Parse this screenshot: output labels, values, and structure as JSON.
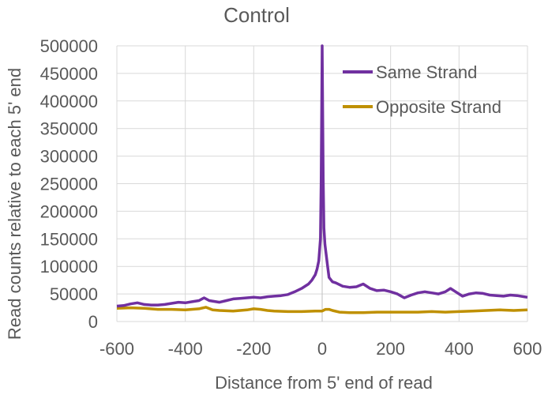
{
  "chart_data": {
    "type": "line",
    "title": "Control",
    "xlabel": "Distance from 5' end of read",
    "ylabel": "Read counts relative to each 5' end",
    "xlim": [
      -600,
      600
    ],
    "ylim": [
      0,
      500000
    ],
    "xticks": [
      -600,
      -400,
      -200,
      0,
      200,
      400,
      600
    ],
    "yticks": [
      0,
      50000,
      100000,
      150000,
      200000,
      250000,
      300000,
      350000,
      400000,
      450000,
      500000
    ],
    "grid": true,
    "legend": "top-right",
    "series": [
      {
        "name": "Same Strand",
        "color": "#7030A0",
        "points": [
          [
            -600,
            28000
          ],
          [
            -580,
            29000
          ],
          [
            -560,
            32000
          ],
          [
            -540,
            34000
          ],
          [
            -520,
            31000
          ],
          [
            -500,
            30000
          ],
          [
            -480,
            30000
          ],
          [
            -460,
            31000
          ],
          [
            -440,
            33000
          ],
          [
            -420,
            35000
          ],
          [
            -400,
            34000
          ],
          [
            -380,
            36000
          ],
          [
            -360,
            38000
          ],
          [
            -345,
            43000
          ],
          [
            -330,
            38000
          ],
          [
            -300,
            35000
          ],
          [
            -280,
            38000
          ],
          [
            -260,
            41000
          ],
          [
            -240,
            42000
          ],
          [
            -220,
            43000
          ],
          [
            -200,
            44000
          ],
          [
            -180,
            43000
          ],
          [
            -160,
            45000
          ],
          [
            -140,
            46000
          ],
          [
            -120,
            47000
          ],
          [
            -100,
            49000
          ],
          [
            -80,
            54000
          ],
          [
            -60,
            60000
          ],
          [
            -40,
            68000
          ],
          [
            -30,
            75000
          ],
          [
            -20,
            85000
          ],
          [
            -15,
            95000
          ],
          [
            -10,
            110000
          ],
          [
            -5,
            150000
          ],
          [
            -3,
            250000
          ],
          [
            0,
            500000
          ],
          [
            3,
            260000
          ],
          [
            5,
            170000
          ],
          [
            8,
            140000
          ],
          [
            12,
            120000
          ],
          [
            16,
            100000
          ],
          [
            20,
            80000
          ],
          [
            30,
            72000
          ],
          [
            40,
            70000
          ],
          [
            60,
            64000
          ],
          [
            80,
            62000
          ],
          [
            100,
            63000
          ],
          [
            120,
            68000
          ],
          [
            140,
            60000
          ],
          [
            160,
            56000
          ],
          [
            180,
            57000
          ],
          [
            200,
            54000
          ],
          [
            220,
            50000
          ],
          [
            240,
            43000
          ],
          [
            260,
            48000
          ],
          [
            280,
            52000
          ],
          [
            300,
            54000
          ],
          [
            320,
            52000
          ],
          [
            340,
            50000
          ],
          [
            360,
            54000
          ],
          [
            375,
            60000
          ],
          [
            390,
            54000
          ],
          [
            410,
            46000
          ],
          [
            430,
            50000
          ],
          [
            450,
            52000
          ],
          [
            470,
            51000
          ],
          [
            490,
            48000
          ],
          [
            510,
            47000
          ],
          [
            530,
            46000
          ],
          [
            550,
            48000
          ],
          [
            570,
            47000
          ],
          [
            590,
            45000
          ],
          [
            600,
            44000
          ]
        ]
      },
      {
        "name": "Opposite Strand",
        "color": "#BF9000",
        "points": [
          [
            -600,
            24000
          ],
          [
            -560,
            25000
          ],
          [
            -520,
            24000
          ],
          [
            -480,
            22000
          ],
          [
            -440,
            22000
          ],
          [
            -400,
            21000
          ],
          [
            -360,
            23000
          ],
          [
            -340,
            26000
          ],
          [
            -320,
            21000
          ],
          [
            -300,
            20000
          ],
          [
            -260,
            19000
          ],
          [
            -220,
            21000
          ],
          [
            -200,
            23000
          ],
          [
            -180,
            22000
          ],
          [
            -160,
            20000
          ],
          [
            -140,
            19000
          ],
          [
            -100,
            18000
          ],
          [
            -60,
            18000
          ],
          [
            -20,
            19000
          ],
          [
            0,
            19000
          ],
          [
            10,
            22000
          ],
          [
            20,
            22000
          ],
          [
            30,
            20000
          ],
          [
            50,
            17000
          ],
          [
            80,
            16000
          ],
          [
            120,
            16000
          ],
          [
            160,
            17000
          ],
          [
            200,
            17000
          ],
          [
            240,
            17000
          ],
          [
            280,
            17000
          ],
          [
            320,
            18000
          ],
          [
            360,
            17000
          ],
          [
            400,
            18000
          ],
          [
            440,
            19000
          ],
          [
            480,
            20000
          ],
          [
            520,
            21000
          ],
          [
            560,
            20000
          ],
          [
            600,
            21000
          ]
        ]
      }
    ]
  }
}
